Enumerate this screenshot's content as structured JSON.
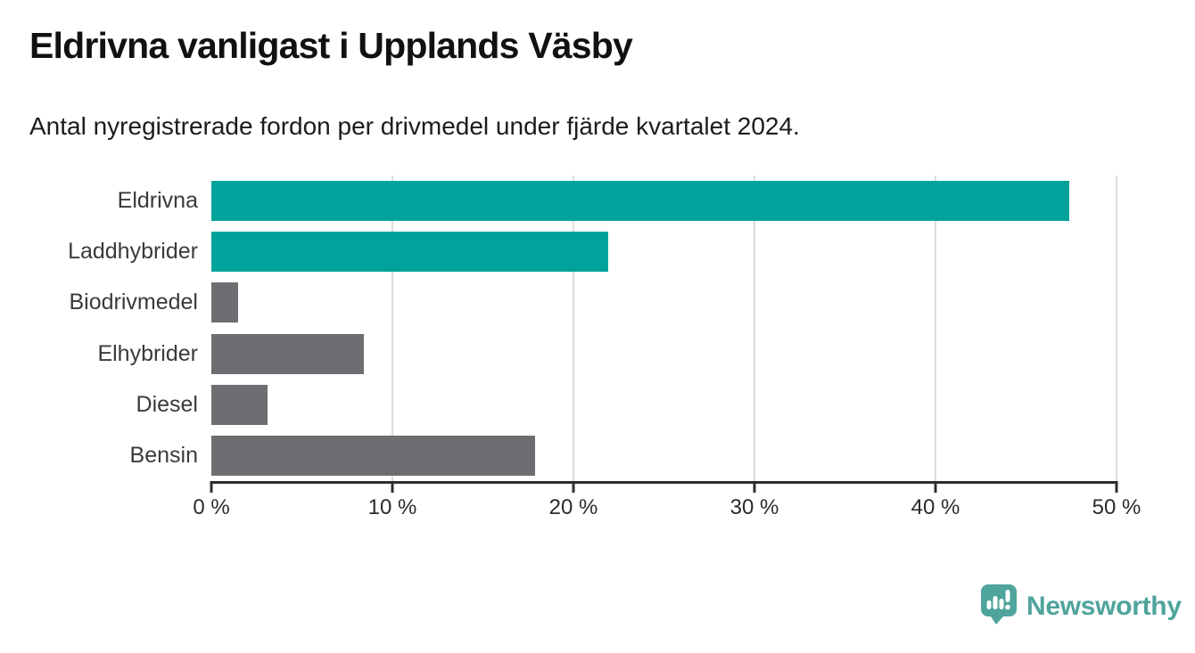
{
  "header": {
    "title": "Eldrivna vanligast i Upplands Väsby",
    "subtitle": "Antal nyregistrerade fordon per drivmedel under fjärde kvartalet 2024."
  },
  "chart_data": {
    "type": "bar",
    "orientation": "horizontal",
    "title": "Eldrivna vanligast i Upplands Väsby",
    "subtitle": "Antal nyregistrerade fordon per drivmedel under fjärde kvartalet 2024.",
    "categories": [
      "Eldrivna",
      "Laddhybrider",
      "Biodrivmedel",
      "Elhybrider",
      "Diesel",
      "Bensin"
    ],
    "values": [
      47.4,
      21.9,
      1.5,
      8.4,
      3.1,
      17.9
    ],
    "unit": "%",
    "xlim": [
      0,
      50
    ],
    "x_ticks": [
      0,
      10,
      20,
      30,
      40,
      50
    ],
    "x_tick_labels": [
      "0 %",
      "10 %",
      "20 %",
      "30 %",
      "40 %",
      "50 %"
    ],
    "grid": "vertical-gridlines",
    "legend": "none",
    "bar_colors": [
      "#00A39B",
      "#00A39B",
      "#6E6E72",
      "#6E6E72",
      "#6E6E72",
      "#6E6E72"
    ],
    "colors": {
      "highlight": "#00A39B",
      "default": "#6E6E72",
      "gridline": "#DCDCDC",
      "axis": "#2E2E2E",
      "tick_label": "#2B2B2B",
      "category_label": "#3A3A3A"
    }
  },
  "footer": {
    "brand": "Newsworthy",
    "brand_color": "#4FA49C",
    "logo_icon": "newsworthy-speech-bubble-chart-icon"
  }
}
